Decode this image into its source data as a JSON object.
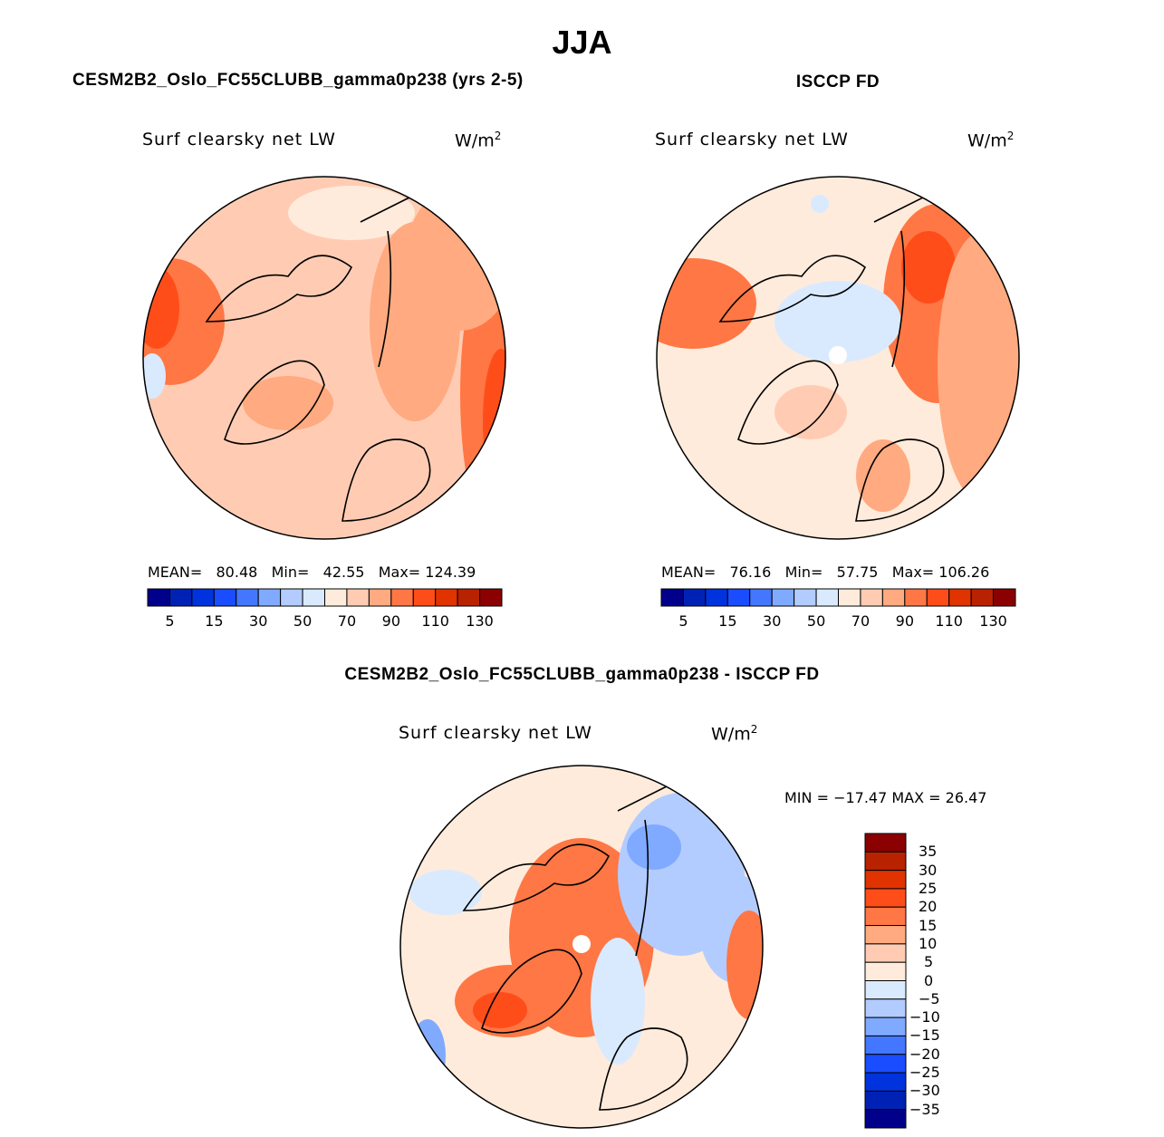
{
  "title": "JJA",
  "panels": [
    {
      "heading": "CESM2B2_Oslo_FC55CLUBB_gamma0p238 (yrs 2-5)",
      "variable": "Surf clearsky net LW",
      "units": "W/m",
      "units_exp": "2",
      "mean_label": "MEAN=",
      "mean": "80.48",
      "min_label": "Min=",
      "min": "42.55",
      "max_label": "Max=",
      "max": "124.39"
    },
    {
      "heading": "ISCCP FD",
      "variable": "Surf clearsky net LW",
      "units": "W/m",
      "units_exp": "2",
      "mean_label": "MEAN=",
      "mean": "76.16",
      "min_label": "Min=",
      "min": "57.75",
      "max_label": "Max=",
      "max": "106.26"
    }
  ],
  "difference": {
    "heading": "CESM2B2_Oslo_FC55CLUBB_gamma0p238 - ISCCP FD",
    "variable": "Surf clearsky net LW",
    "units": "W/m",
    "units_exp": "2",
    "minmax": "MIN = −17.47 MAX =  26.47"
  },
  "colorbar_abs": {
    "labels": [
      "5",
      "15",
      "30",
      "50",
      "70",
      "90",
      "110",
      "130"
    ]
  },
  "colorbar_diff": {
    "labels": [
      "35",
      "30",
      "25",
      "20",
      "15",
      "10",
      "5",
      "0",
      "−5",
      "−10",
      "−15",
      "−20",
      "−25",
      "−30",
      "−35"
    ]
  },
  "colors": [
    "#00008b",
    "#0022b4",
    "#0033dd",
    "#1a4dff",
    "#4477ff",
    "#80aaff",
    "#b3ccff",
    "#d9eaff",
    "#ffebdb",
    "#ffccb3",
    "#ffaa80",
    "#ff7744",
    "#ff4d1a",
    "#e03300",
    "#b82200",
    "#8b0000"
  ]
}
